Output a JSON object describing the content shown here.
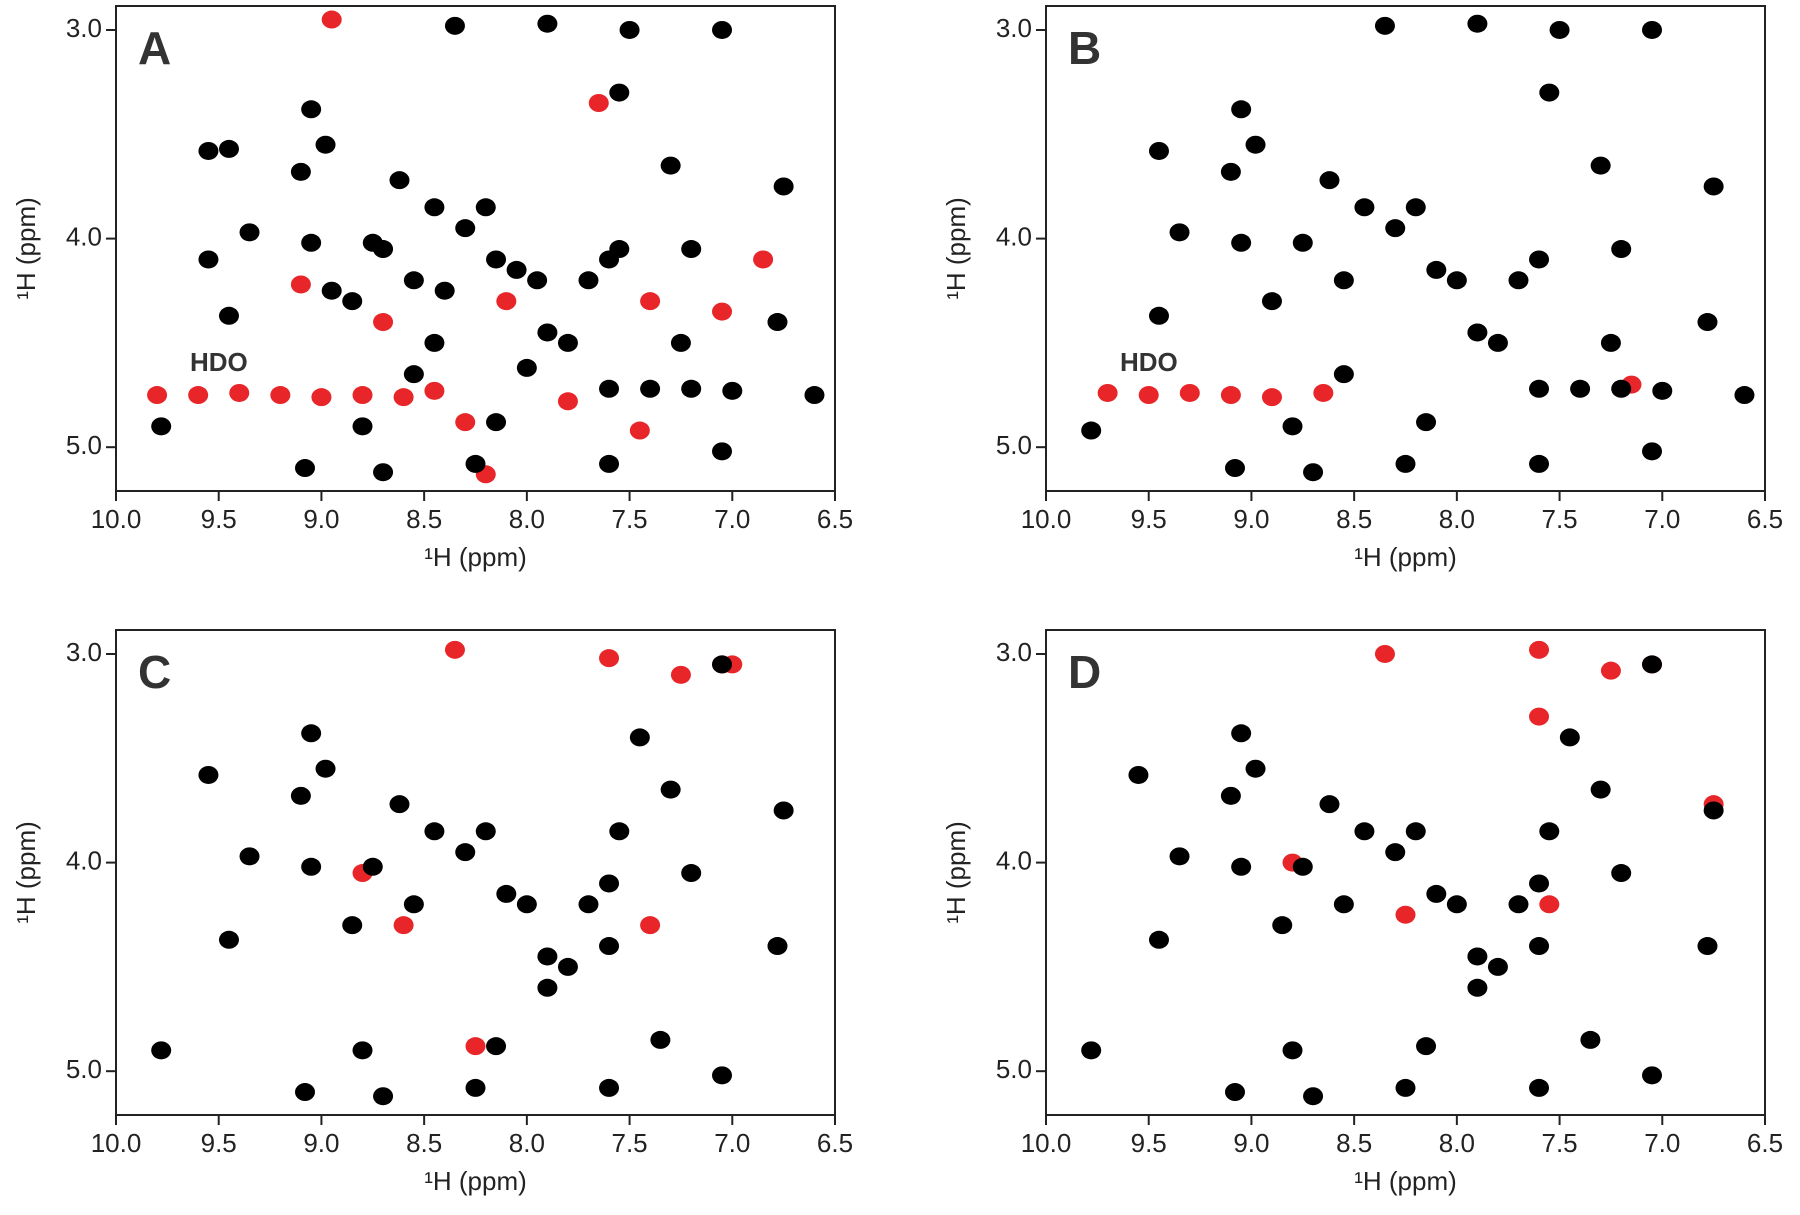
{
  "chart_data": [
    {
      "type": "scatter",
      "title": "A",
      "xlabel": "¹H (ppm)",
      "ylabel": "¹H (ppm)",
      "annotations": [
        "HDO"
      ],
      "xlim": [
        10,
        6.5
      ],
      "ylim": [
        2.885,
        5.21
      ],
      "xticks": [
        {
          "value": 10,
          "label": "10.0"
        },
        9.5,
        {
          "value": 9,
          "label": "9.0"
        },
        8.5,
        {
          "value": 8,
          "label": "8.0"
        },
        7.5,
        {
          "value": 7,
          "label": "7.0"
        },
        6.5
      ],
      "yticks": [
        {
          "value": 3,
          "label": "3.0"
        },
        {
          "value": 4,
          "label": "4.0"
        },
        {
          "value": 5,
          "label": "5.0"
        }
      ],
      "series": [
        {
          "color": "#e8262a",
          "x": [
            9.8,
            9.6,
            9.4,
            9.2,
            9.0,
            8.8,
            8.6,
            8.45,
            8.2,
            8.3,
            7.45,
            8.95,
            7.05,
            7.4,
            8.1,
            7.65,
            6.85,
            9.1,
            8.7,
            7.8
          ],
          "values": [
            4.75,
            4.75,
            4.74,
            4.75,
            4.76,
            4.75,
            4.76,
            4.73,
            5.13,
            4.88,
            4.92,
            2.95,
            4.35,
            4.3,
            4.3,
            3.35,
            4.1,
            4.22,
            4.4,
            4.78
          ]
        },
        {
          "color": "#000000",
          "x": [
            9.78,
            9.55,
            9.45,
            9.45,
            9.35,
            9.55,
            9.1,
            9.05,
            8.98,
            9.05,
            8.95,
            8.85,
            8.8,
            8.75,
            8.7,
            8.62,
            8.55,
            8.45,
            8.4,
            8.3,
            8.2,
            8.15,
            8.05,
            7.95,
            7.9,
            7.8,
            7.7,
            7.6,
            7.55,
            7.5,
            7.55,
            7.3,
            7.2,
            7.05,
            7.05,
            6.75,
            6.78,
            8.25,
            8.15,
            7.6,
            8.7,
            9.08,
            8.55,
            8.35,
            7.9,
            7.6,
            7.4,
            7.2,
            7.0,
            6.6,
            8.0,
            7.25,
            8.45
          ],
          "values": [
            4.9,
            3.58,
            3.57,
            4.37,
            3.97,
            4.1,
            3.68,
            3.38,
            3.55,
            4.02,
            4.25,
            4.3,
            4.9,
            4.02,
            4.05,
            3.72,
            4.2,
            3.85,
            4.25,
            3.95,
            3.85,
            4.1,
            4.15,
            4.2,
            4.45,
            4.5,
            4.2,
            4.1,
            4.05,
            3.0,
            3.3,
            3.65,
            4.05,
            3.0,
            5.02,
            3.75,
            4.4,
            5.08,
            4.88,
            5.08,
            5.12,
            5.1,
            4.65,
            2.98,
            2.97,
            4.72,
            4.72,
            4.72,
            4.73,
            4.75,
            4.62,
            4.5,
            4.5
          ]
        }
      ]
    },
    {
      "type": "scatter",
      "title": "B",
      "xlabel": "¹H (ppm)",
      "ylabel": "¹H (ppm)",
      "annotations": [
        "HDO"
      ],
      "xlim": [
        10,
        6.5
      ],
      "ylim": [
        2.885,
        5.21
      ],
      "xticks": [
        {
          "value": 10,
          "label": "10.0"
        },
        9.5,
        {
          "value": 9,
          "label": "9.0"
        },
        8.5,
        {
          "value": 8,
          "label": "8.0"
        },
        7.5,
        {
          "value": 7,
          "label": "7.0"
        },
        6.5
      ],
      "yticks": [
        {
          "value": 3,
          "label": "3.0"
        },
        {
          "value": 4,
          "label": "4.0"
        },
        {
          "value": 5,
          "label": "5.0"
        }
      ],
      "series": [
        {
          "color": "#e8262a",
          "x": [
            9.7,
            9.5,
            9.3,
            9.1,
            8.9,
            8.65,
            7.15
          ],
          "values": [
            4.74,
            4.75,
            4.74,
            4.75,
            4.76,
            4.74,
            4.7
          ]
        },
        {
          "color": "#000000",
          "x": [
            9.78,
            9.45,
            9.45,
            9.35,
            9.1,
            9.05,
            8.98,
            9.05,
            8.9,
            8.8,
            8.75,
            8.62,
            8.55,
            8.45,
            8.3,
            8.2,
            8.1,
            8.0,
            7.9,
            7.8,
            7.7,
            7.6,
            7.5,
            7.55,
            7.3,
            7.2,
            7.05,
            7.05,
            6.75,
            6.78,
            8.25,
            8.15,
            7.6,
            8.7,
            9.08,
            8.55,
            8.35,
            7.9,
            7.6,
            7.4,
            7.2,
            7.0,
            6.6,
            7.25
          ],
          "values": [
            4.92,
            3.58,
            4.37,
            3.97,
            3.68,
            3.38,
            3.55,
            4.02,
            4.3,
            4.9,
            4.02,
            3.72,
            4.2,
            3.85,
            3.95,
            3.85,
            4.15,
            4.2,
            4.45,
            4.5,
            4.2,
            4.1,
            3.0,
            3.3,
            3.65,
            4.05,
            3.0,
            5.02,
            3.75,
            4.4,
            5.08,
            4.88,
            5.08,
            5.12,
            5.1,
            4.65,
            2.98,
            2.97,
            4.72,
            4.72,
            4.72,
            4.73,
            4.75,
            4.5
          ]
        }
      ]
    },
    {
      "type": "scatter",
      "title": "C",
      "xlabel": "¹H (ppm)",
      "ylabel": "¹H (ppm)",
      "xlim": [
        10,
        6.5
      ],
      "ylim": [
        2.885,
        5.21
      ],
      "xticks": [
        {
          "value": 10,
          "label": "10.0"
        },
        9.5,
        {
          "value": 9,
          "label": "9.0"
        },
        8.5,
        {
          "value": 8,
          "label": "8.0"
        },
        7.5,
        {
          "value": 7,
          "label": "7.0"
        },
        6.5
      ],
      "yticks": [
        {
          "value": 3,
          "label": "3.0"
        },
        {
          "value": 4,
          "label": "4.0"
        },
        {
          "value": 5,
          "label": "5.0"
        }
      ],
      "series": [
        {
          "color": "#e8262a",
          "x": [
            8.35,
            7.6,
            7.25,
            7.05,
            8.25,
            8.8,
            8.6,
            7.4,
            7.0
          ],
          "values": [
            2.98,
            3.02,
            3.1,
            3.05,
            4.88,
            4.05,
            4.3,
            4.3,
            3.05
          ]
        },
        {
          "color": "#000000",
          "x": [
            9.78,
            9.55,
            9.45,
            9.35,
            9.1,
            9.05,
            8.98,
            9.05,
            8.85,
            8.8,
            8.75,
            8.62,
            8.55,
            8.45,
            8.3,
            8.2,
            8.1,
            8.0,
            7.9,
            7.8,
            7.7,
            7.6,
            7.55,
            7.3,
            7.2,
            7.05,
            6.75,
            6.78,
            8.25,
            8.15,
            7.6,
            8.7,
            9.08,
            7.6,
            7.35,
            7.05,
            7.45,
            7.9
          ],
          "values": [
            4.9,
            3.58,
            4.37,
            3.97,
            3.68,
            3.38,
            3.55,
            4.02,
            4.3,
            4.9,
            4.02,
            3.72,
            4.2,
            3.85,
            3.95,
            3.85,
            4.15,
            4.2,
            4.45,
            4.5,
            4.2,
            4.1,
            3.85,
            3.65,
            4.05,
            3.05,
            3.75,
            4.4,
            5.08,
            4.88,
            5.08,
            5.12,
            5.1,
            4.4,
            4.85,
            5.02,
            3.4,
            4.6
          ]
        }
      ]
    },
    {
      "type": "scatter",
      "title": "D",
      "xlabel": "¹H (ppm)",
      "ylabel": "¹H (ppm)",
      "xlim": [
        10,
        6.5
      ],
      "ylim": [
        2.885,
        5.21
      ],
      "xticks": [
        {
          "value": 10,
          "label": "10.0"
        },
        9.5,
        {
          "value": 9,
          "label": "9.0"
        },
        8.5,
        {
          "value": 8,
          "label": "8.0"
        },
        7.5,
        {
          "value": 7,
          "label": "7.0"
        },
        6.5
      ],
      "yticks": [
        {
          "value": 3,
          "label": "3.0"
        },
        {
          "value": 4,
          "label": "4.0"
        },
        {
          "value": 5,
          "label": "5.0"
        }
      ],
      "series": [
        {
          "color": "#e8262a",
          "x": [
            8.35,
            7.6,
            7.25,
            7.05,
            7.6,
            8.8,
            8.25,
            7.55,
            6.75
          ],
          "values": [
            3.0,
            2.98,
            3.08,
            3.05,
            3.3,
            4.0,
            4.25,
            4.2,
            3.72
          ]
        },
        {
          "color": "#000000",
          "x": [
            9.78,
            9.55,
            9.45,
            9.35,
            9.1,
            9.05,
            8.98,
            9.05,
            8.85,
            8.8,
            8.75,
            8.62,
            8.55,
            8.45,
            8.3,
            8.2,
            8.1,
            8.0,
            7.9,
            7.8,
            7.7,
            7.6,
            7.55,
            7.3,
            7.2,
            7.05,
            6.75,
            6.78,
            8.25,
            8.15,
            7.6,
            8.7,
            9.08,
            7.6,
            7.35,
            7.05,
            7.45,
            7.9
          ],
          "values": [
            4.9,
            3.58,
            4.37,
            3.97,
            3.68,
            3.38,
            3.55,
            4.02,
            4.3,
            4.9,
            4.02,
            3.72,
            4.2,
            3.85,
            3.95,
            3.85,
            4.15,
            4.2,
            4.45,
            4.5,
            4.2,
            4.1,
            3.85,
            3.65,
            4.05,
            3.05,
            3.75,
            4.4,
            5.08,
            4.88,
            5.08,
            5.12,
            5.1,
            4.4,
            4.85,
            5.02,
            3.4,
            4.6
          ]
        }
      ]
    }
  ]
}
